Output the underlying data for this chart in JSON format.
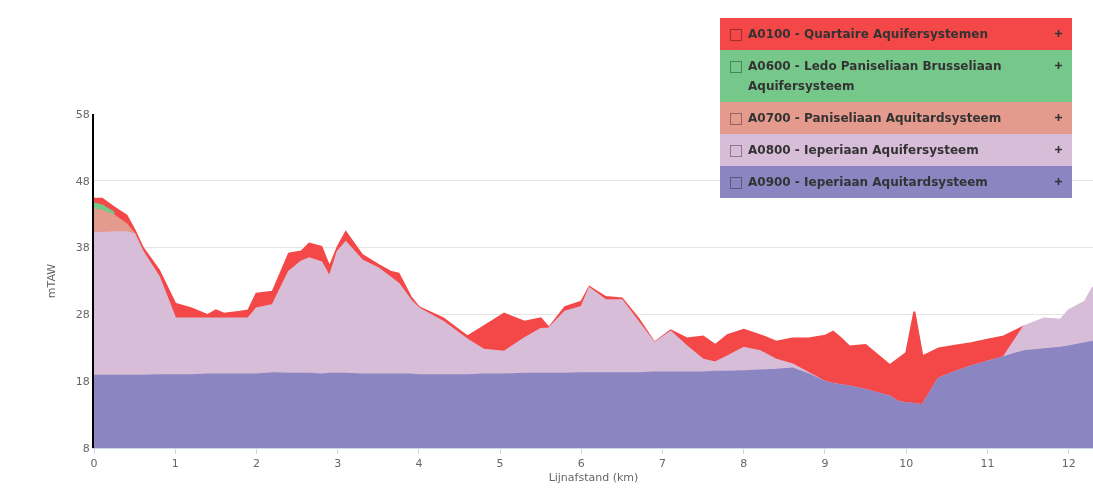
{
  "chart_data": {
    "type": "area",
    "xlabel": "Lijnafstand (km)",
    "ylabel": "mTAW",
    "x": [
      0,
      0.1,
      0.25,
      0.4,
      0.5,
      0.6,
      0.8,
      1.0,
      1.2,
      1.4,
      1.5,
      1.6,
      1.8,
      1.9,
      2.0,
      2.2,
      2.4,
      2.55,
      2.65,
      2.8,
      2.9,
      3.0,
      3.1,
      3.3,
      3.5,
      3.65,
      3.75,
      3.9,
      4.0,
      4.3,
      4.6,
      4.8,
      5.05,
      5.3,
      5.5,
      5.6,
      5.8,
      6.0,
      6.1,
      6.3,
      6.5,
      6.7,
      6.9,
      7.1,
      7.3,
      7.5,
      7.65,
      7.8,
      8.0,
      8.2,
      8.4,
      8.6,
      8.8,
      9.0,
      9.1,
      9.2,
      9.3,
      9.5,
      9.8,
      9.9,
      10.0,
      10.1,
      10.2,
      10.4,
      10.6,
      10.8,
      11.0,
      11.2,
      11.45,
      11.7,
      11.9,
      12.0,
      12.2,
      12.3
    ],
    "series": [
      {
        "name": "A0100 - Quartaire Aquifersystemen",
        "color": "#f44848",
        "values": [
          45.3,
          45.3,
          44.0,
          42.8,
          40.6,
          38.0,
          34.6,
          29.6,
          28.9,
          27.9,
          28.6,
          28.1,
          28.4,
          28.6,
          31.1,
          31.4,
          37.1,
          37.4,
          38.6,
          38.1,
          35.1,
          38.1,
          40.3,
          36.9,
          35.4,
          34.4,
          34.1,
          30.6,
          29.1,
          27.4,
          24.7,
          26.2,
          28.1,
          26.9,
          27.4,
          26.0,
          29.1,
          29.9,
          32.1,
          30.6,
          30.4,
          27.4,
          23.8,
          25.6,
          24.4,
          24.7,
          23.4,
          24.9,
          25.7,
          24.9,
          23.9,
          24.4,
          24.4,
          24.8,
          25.4,
          24.4,
          23.2,
          23.4,
          20.4,
          21.3,
          22.2,
          28.4,
          21.7,
          22.9,
          23.3,
          23.7,
          24.2,
          24.7,
          26.2,
          null,
          null,
          null,
          null,
          null
        ]
      },
      {
        "name": "A0600 - Ledo Paniseliaan Brusseliaan Aquifersysteem",
        "color": "#76c78a",
        "values": [
          44.6,
          44.3,
          43.2,
          null,
          null,
          null,
          null,
          null,
          null,
          null,
          null,
          null,
          null,
          null,
          null,
          null,
          null,
          null,
          null,
          null,
          null,
          null,
          null,
          null,
          null,
          null,
          null,
          null,
          null,
          null,
          null,
          null,
          null,
          null,
          null,
          null,
          null,
          null,
          null,
          null,
          null,
          null,
          null,
          null,
          null,
          null,
          null,
          null,
          null,
          null,
          null,
          null,
          null,
          null,
          null,
          null,
          null,
          null,
          null,
          null,
          null,
          null,
          null,
          null,
          null,
          null,
          null,
          null,
          null,
          null,
          null,
          null,
          null,
          null
        ]
      },
      {
        "name": "A0700 - Paniseliaan Aquitardsysteem",
        "color": "#e49a8c",
        "values": [
          43.8,
          43.5,
          42.8,
          41.5,
          40.0,
          null,
          null,
          null,
          null,
          null,
          null,
          null,
          null,
          null,
          null,
          null,
          null,
          null,
          null,
          null,
          null,
          null,
          null,
          null,
          null,
          null,
          null,
          null,
          null,
          null,
          null,
          null,
          null,
          null,
          null,
          null,
          null,
          null,
          null,
          null,
          null,
          null,
          null,
          null,
          null,
          null,
          null,
          null,
          null,
          null,
          null,
          null,
          null,
          null,
          null,
          null,
          null,
          null,
          null,
          null,
          null,
          null,
          null,
          null,
          null,
          null,
          null,
          null,
          null,
          null,
          null,
          null,
          null,
          null
        ]
      },
      {
        "name": "A0800 - Ieperiaan Aquifersysteem",
        "color": "#d8bdd8",
        "values": [
          40.2,
          40.2,
          40.3,
          40.3,
          40.0,
          37.4,
          33.6,
          27.4,
          27.4,
          27.4,
          27.4,
          27.4,
          27.4,
          27.4,
          28.9,
          29.4,
          34.4,
          35.9,
          36.4,
          35.8,
          33.6,
          37.4,
          38.8,
          36.1,
          34.9,
          33.5,
          32.6,
          30.1,
          28.9,
          26.9,
          24.2,
          22.7,
          22.4,
          24.4,
          25.8,
          25.9,
          28.4,
          29.1,
          31.9,
          30.1,
          30.1,
          26.9,
          23.7,
          25.4,
          23.2,
          21.2,
          20.8,
          21.7,
          23.0,
          22.5,
          21.2,
          20.5,
          19.2,
          17.9,
          17.6,
          17.4,
          17.2,
          16.7,
          15.7,
          14.9,
          14.7,
          14.6,
          14.4,
          18.4,
          19.4,
          20.2,
          20.9,
          21.6,
          26.2,
          27.4,
          27.2,
          28.6,
          29.9,
          32.1
        ]
      },
      {
        "name": "A0900 - Ieperiaan Aquitardsysteem",
        "color": "#8b86c2",
        "values": [
          18.8,
          18.8,
          18.8,
          18.8,
          18.8,
          18.8,
          18.9,
          18.9,
          18.9,
          19.0,
          19.0,
          19.0,
          19.0,
          19.0,
          19.0,
          19.2,
          19.1,
          19.1,
          19.1,
          19.0,
          19.1,
          19.1,
          19.1,
          19.0,
          19.0,
          19.0,
          19.0,
          19.0,
          18.9,
          18.9,
          18.9,
          19.0,
          19.0,
          19.1,
          19.1,
          19.1,
          19.1,
          19.2,
          19.2,
          19.2,
          19.2,
          19.2,
          19.3,
          19.3,
          19.3,
          19.3,
          19.4,
          19.4,
          19.5,
          19.6,
          19.7,
          19.9,
          19.0,
          17.9,
          17.6,
          17.4,
          17.2,
          16.7,
          15.7,
          14.9,
          14.7,
          14.6,
          14.4,
          18.4,
          19.4,
          20.2,
          20.9,
          21.6,
          22.5,
          22.8,
          23.0,
          23.2,
          23.7,
          23.9
        ]
      }
    ],
    "xlim": [
      0,
      12.3
    ],
    "xticks": [
      0,
      1,
      2,
      3,
      4,
      5,
      6,
      7,
      8,
      9,
      10,
      11,
      12
    ],
    "ylim": [
      8,
      58
    ],
    "yticks": [
      8,
      18,
      28,
      38,
      48,
      58
    ],
    "grid": "y",
    "legend": "top right",
    "marker": "none"
  }
}
